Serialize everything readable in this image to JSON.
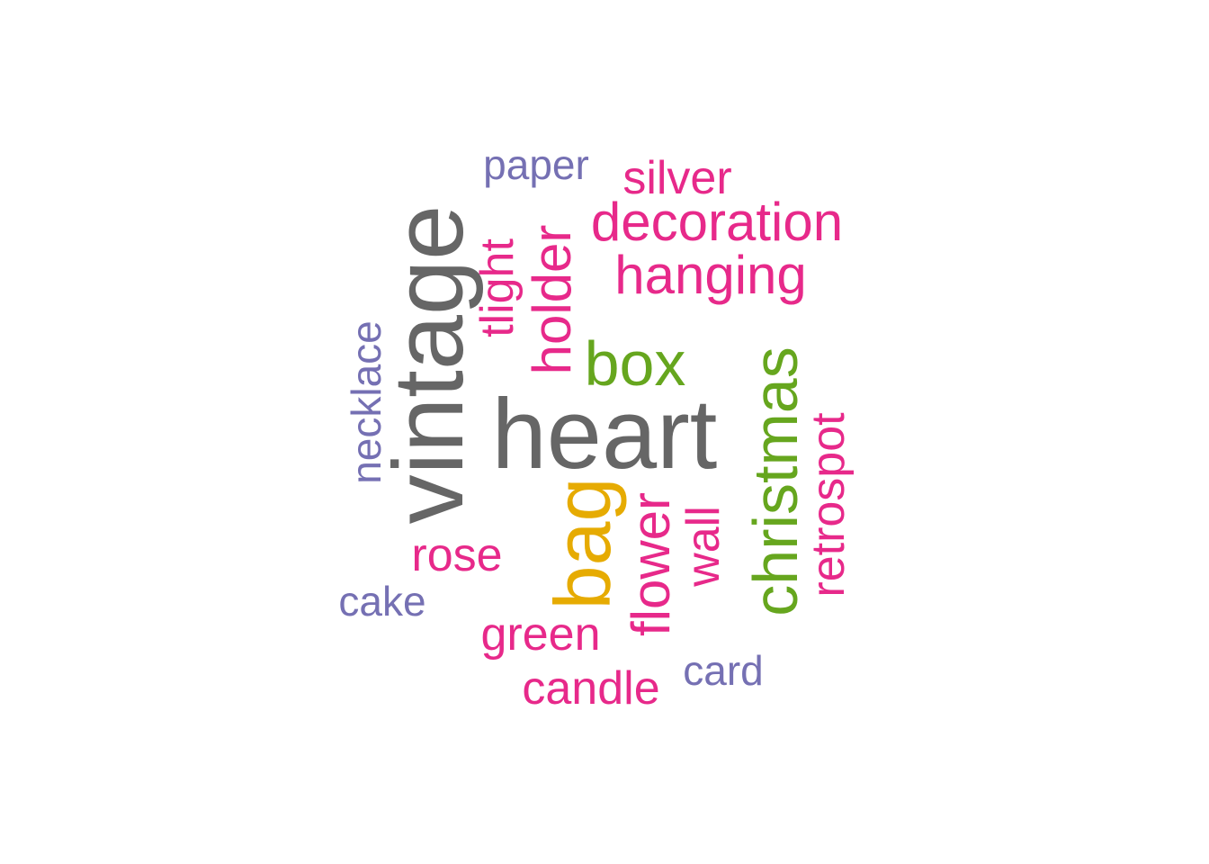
{
  "word_cloud": {
    "colors": {
      "gray": "#666666",
      "pink": "#E7298A",
      "green": "#66A61E",
      "gold": "#E6AB02",
      "purple": "#7570B3"
    },
    "words": [
      {
        "text": "heart",
        "color": "#666666",
        "vertical": false
      },
      {
        "text": "vintage",
        "color": "#666666",
        "vertical": true
      },
      {
        "text": "bag",
        "color": "#E6AB02",
        "vertical": true
      },
      {
        "text": "christmas",
        "color": "#66A61E",
        "vertical": true
      },
      {
        "text": "box",
        "color": "#66A61E",
        "vertical": false
      },
      {
        "text": "hanging",
        "color": "#E7298A",
        "vertical": false
      },
      {
        "text": "decoration",
        "color": "#E7298A",
        "vertical": false
      },
      {
        "text": "holder",
        "color": "#E7298A",
        "vertical": true
      },
      {
        "text": "flower",
        "color": "#E7298A",
        "vertical": true
      },
      {
        "text": "silver",
        "color": "#E7298A",
        "vertical": false
      },
      {
        "text": "tlight",
        "color": "#E7298A",
        "vertical": true
      },
      {
        "text": "green",
        "color": "#E7298A",
        "vertical": false
      },
      {
        "text": "candle",
        "color": "#E7298A",
        "vertical": false
      },
      {
        "text": "rose",
        "color": "#E7298A",
        "vertical": false
      },
      {
        "text": "wall",
        "color": "#E7298A",
        "vertical": true
      },
      {
        "text": "retrospot",
        "color": "#E7298A",
        "vertical": true
      },
      {
        "text": "paper",
        "color": "#7570B3",
        "vertical": false
      },
      {
        "text": "necklace",
        "color": "#7570B3",
        "vertical": true
      },
      {
        "text": "cake",
        "color": "#7570B3",
        "vertical": false
      },
      {
        "text": "card",
        "color": "#7570B3",
        "vertical": false
      }
    ]
  }
}
